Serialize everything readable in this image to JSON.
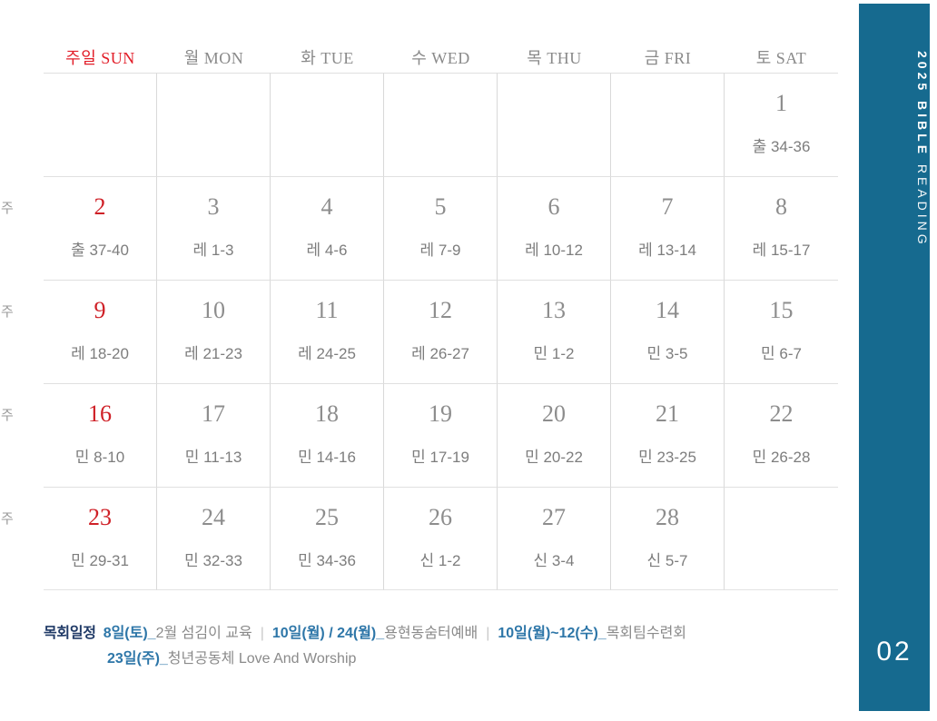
{
  "colors": {
    "sidebar_teal": "#166a8f",
    "sunday_red": "#cf2027",
    "header_sunday_red": "#e21e29",
    "schedule_navy": "#1f3966",
    "schedule_blue": "#2d76a8",
    "text_gray": "#8a8a8a"
  },
  "sidebar": {
    "title_bold": "2025 BIBLE",
    "title_light": " READING",
    "page_number": "02"
  },
  "calendar": {
    "headers": [
      {
        "label": "주일 SUN",
        "en": "SUN",
        "sunday": true
      },
      {
        "label": "월 MON",
        "en": "MON"
      },
      {
        "label": "화 TUE",
        "en": "TUE"
      },
      {
        "label": "수 WED",
        "en": "WED"
      },
      {
        "label": "목 THU",
        "en": "THU"
      },
      {
        "label": "금 FRI",
        "en": "FRI"
      },
      {
        "label": "토 SAT",
        "en": "SAT"
      }
    ],
    "week_markers": [
      "주",
      "주",
      "주",
      "주"
    ],
    "weeks": [
      [
        null,
        null,
        null,
        null,
        null,
        null,
        {
          "day": "1",
          "reading": "출 34-36"
        }
      ],
      [
        {
          "day": "2",
          "reading": "출 37-40",
          "sunday": true
        },
        {
          "day": "3",
          "reading": "레 1-3"
        },
        {
          "day": "4",
          "reading": "레 4-6"
        },
        {
          "day": "5",
          "reading": "레 7-9"
        },
        {
          "day": "6",
          "reading": "레 10-12"
        },
        {
          "day": "7",
          "reading": "레 13-14"
        },
        {
          "day": "8",
          "reading": "레 15-17"
        }
      ],
      [
        {
          "day": "9",
          "reading": "레 18-20",
          "sunday": true
        },
        {
          "day": "10",
          "reading": "레 21-23"
        },
        {
          "day": "11",
          "reading": "레 24-25"
        },
        {
          "day": "12",
          "reading": "레 26-27"
        },
        {
          "day": "13",
          "reading": "민 1-2"
        },
        {
          "day": "14",
          "reading": "민 3-5"
        },
        {
          "day": "15",
          "reading": "민 6-7"
        }
      ],
      [
        {
          "day": "16",
          "reading": "민 8-10",
          "sunday": true
        },
        {
          "day": "17",
          "reading": "민 11-13"
        },
        {
          "day": "18",
          "reading": "민 14-16"
        },
        {
          "day": "19",
          "reading": "민 17-19"
        },
        {
          "day": "20",
          "reading": "민 20-22"
        },
        {
          "day": "21",
          "reading": "민 23-25"
        },
        {
          "day": "22",
          "reading": "민 26-28"
        }
      ],
      [
        {
          "day": "23",
          "reading": "민 29-31",
          "sunday": true
        },
        {
          "day": "24",
          "reading": "민 32-33"
        },
        {
          "day": "25",
          "reading": "민 34-36"
        },
        {
          "day": "26",
          "reading": "신 1-2"
        },
        {
          "day": "27",
          "reading": "신 3-4"
        },
        {
          "day": "28",
          "reading": "신 5-7"
        },
        null
      ]
    ]
  },
  "schedule": {
    "label": "목회일정",
    "line1": [
      {
        "type": "date",
        "text": "8일(토)_"
      },
      {
        "type": "desc",
        "text": "2월 섬김이 교육"
      },
      {
        "type": "sep",
        "text": "|"
      },
      {
        "type": "date",
        "text": "10일(월) / 24(월)_"
      },
      {
        "type": "desc",
        "text": "용현동숨터예배"
      },
      {
        "type": "sep",
        "text": "|"
      },
      {
        "type": "date",
        "text": "10일(월)~12(수)_"
      },
      {
        "type": "desc",
        "text": "목회팀수련회"
      }
    ],
    "line2": [
      {
        "type": "date",
        "text": "23일(주)_"
      },
      {
        "type": "desc",
        "text": "청년공동체 Love And Worship"
      }
    ]
  }
}
